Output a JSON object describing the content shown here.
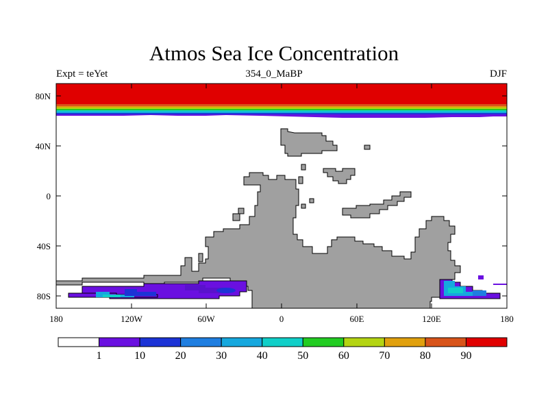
{
  "title": "Atmos Sea Ice Concentration",
  "subtitle_left": "Expt = teYet",
  "subtitle_center": "354_0_MaBP",
  "subtitle_right": "DJF",
  "x_tick_labels": [
    "180",
    "120W",
    "60W",
    "0",
    "60E",
    "120E",
    "180"
  ],
  "y_tick_labels": [
    "80N",
    "40N",
    "0",
    "40S",
    "80S"
  ],
  "colorbar": {
    "labels": [
      "1",
      "10",
      "20",
      "30",
      "40",
      "50",
      "60",
      "70",
      "80",
      "90"
    ],
    "colors": [
      "#ffffff",
      "#6a10e0",
      "#1c33d6",
      "#1f7ee0",
      "#16a8de",
      "#10cfc8",
      "#22cc22",
      "#b4d412",
      "#e0a00e",
      "#d8541a",
      "#e00000"
    ]
  },
  "map_colors": {
    "land": "#a0a0a0",
    "ocean": "#ffffff",
    "ice_high": "#e00000",
    "ice_low": "#6a10e0"
  }
}
